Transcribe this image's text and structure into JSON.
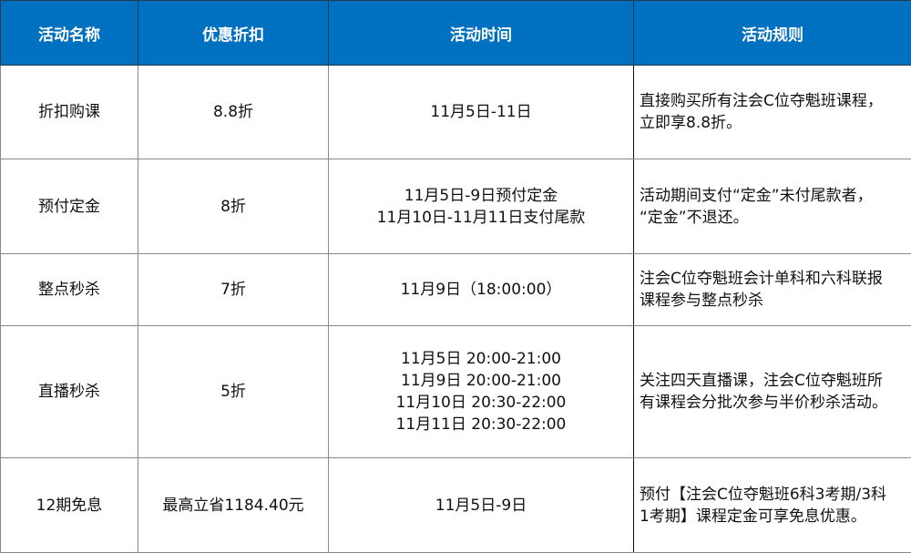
{
  "header": {
    "colors": {
      "header_bg": "#0070c0"
    },
    "columns": [
      "活动名称",
      "优惠折扣",
      "活动时间",
      "活动规则"
    ]
  },
  "rows": [
    {
      "name": "折扣购课",
      "discount": "8.8折",
      "time": [
        "11月5日-11日"
      ],
      "rule": [
        "直接购买所有注会C位夺魁班课程，",
        "立即享8.8折。"
      ]
    },
    {
      "name": "预付定金",
      "discount": "8折",
      "time": [
        "11月5日-9日预付定金",
        "11月10日-11月11日支付尾款"
      ],
      "rule": [
        "活动期间支付“定金”未付尾款者，",
        "“定金”不退还。"
      ]
    },
    {
      "name": "整点秒杀",
      "discount": "7折",
      "time": [
        "11月9日（18:00:00）"
      ],
      "rule": [
        "注会C位夺魁班会计单科和六科联报",
        "课程参与整点秒杀"
      ]
    },
    {
      "name": "直播秒杀",
      "discount": "5折",
      "time": [
        "11月5日 20:00-21:00",
        "11月9日 20:00-21:00",
        "11月10日 20:30-22:00",
        "11月11日 20:30-22:00"
      ],
      "rule": [
        "关注四天直播课，注会C位夺魁班所",
        "有课程会分批次参与半价秒杀活动。"
      ]
    },
    {
      "name": "12期免息",
      "discount": "最高立省1184.40元",
      "time": [
        "11月5日-9日"
      ],
      "rule": [
        "预付【注会C位夺魁班6科3考期/3科",
        "1考期】课程定金可享免息优惠。"
      ]
    }
  ]
}
